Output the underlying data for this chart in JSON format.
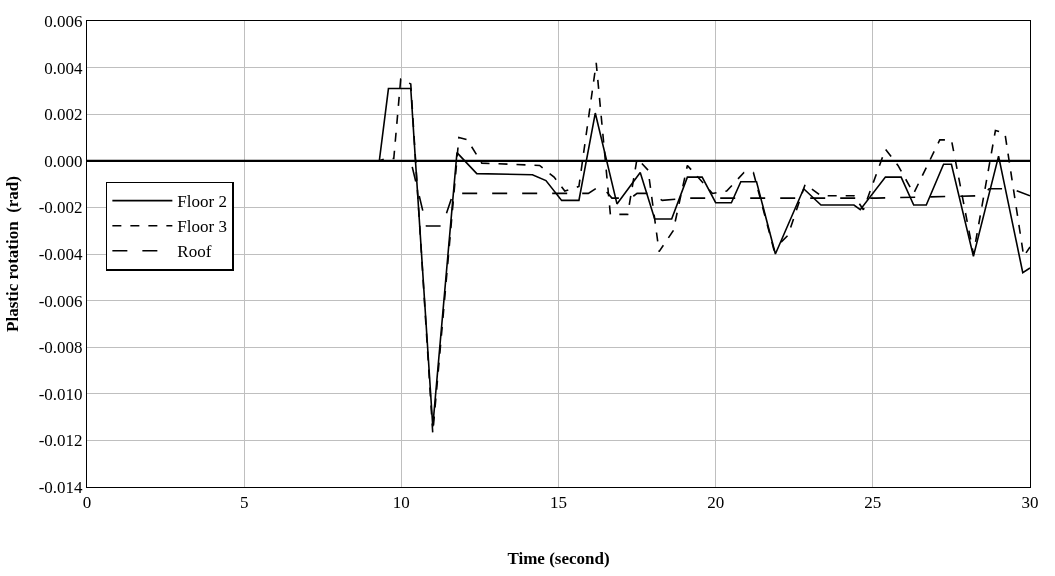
{
  "chart_data": {
    "type": "line",
    "xlabel": "Time (second)",
    "ylabel": "Plastic rotation  (rad)",
    "xlim": [
      0,
      30
    ],
    "xticks": [
      0,
      5,
      10,
      15,
      20,
      25,
      30
    ],
    "ylim": [
      -0.014,
      0.006
    ],
    "yticks": [
      {
        "value": -0.014,
        "label": "-0.014"
      },
      {
        "value": -0.012,
        "label": "-0.012"
      },
      {
        "value": -0.01,
        "label": "-0.010"
      },
      {
        "value": -0.008,
        "label": "-0.008"
      },
      {
        "value": -0.006,
        "label": "-0.006"
      },
      {
        "value": -0.004,
        "label": "-0.004"
      },
      {
        "value": -0.002,
        "label": "-0.002"
      },
      {
        "value": 0,
        "label": "0.000"
      },
      {
        "value": 0.002,
        "label": "0.002"
      },
      {
        "value": 0.004,
        "label": "0.004"
      },
      {
        "value": 0.006,
        "label": "0.006"
      }
    ],
    "grid": true,
    "legend": "left",
    "marker": "none",
    "ref_lines": [
      {
        "axis": "y",
        "value": 0,
        "color": "#000000"
      }
    ],
    "series": [
      {
        "name": "Floor 2",
        "color": "#000000",
        "line_style": "solid",
        "x": [
          0,
          9.3,
          9.59,
          10.3,
          11.0,
          11.77,
          12.4,
          14.17,
          14.6,
          15.1,
          15.65,
          16.17,
          16.86,
          17.6,
          18.06,
          18.6,
          19.1,
          19.57,
          20.0,
          20.5,
          20.8,
          21.3,
          21.9,
          22.8,
          23.35,
          24.4,
          24.6,
          25.4,
          25.9,
          26.3,
          26.7,
          27.25,
          27.5,
          28.2,
          29.0,
          29.77,
          30
        ],
        "values": [
          0,
          0,
          0.0031,
          0.0031,
          -0.0114,
          0.00035,
          -0.00055,
          -0.0006,
          -0.00085,
          -0.0017,
          -0.0017,
          0.00205,
          -0.00185,
          -0.0005,
          -0.0025,
          -0.0025,
          -0.0007,
          -0.0007,
          -0.0018,
          -0.0018,
          -0.0009,
          -0.0009,
          -0.004,
          -0.0012,
          -0.0019,
          -0.0019,
          -0.0021,
          -0.0007,
          -0.0007,
          -0.0019,
          -0.0019,
          -0.00015,
          -0.00015,
          -0.0041,
          0.0002,
          -0.0048,
          -0.0046
        ]
      },
      {
        "name": "Floor 3",
        "color": "#000000",
        "line_style": "dotted",
        "x": [
          0,
          9.3,
          9.5,
          9.76,
          9.98,
          10.3,
          11.0,
          11.83,
          12.1,
          12.56,
          14.4,
          14.86,
          15.2,
          15.65,
          16.2,
          16.65,
          17.2,
          17.5,
          17.85,
          18.2,
          18.65,
          19.1,
          19.9,
          20.35,
          20.9,
          21.2,
          21.85,
          22.3,
          22.85,
          23.35,
          24.4,
          24.7,
          25.4,
          25.8,
          26.3,
          27.13,
          27.5,
          28.2,
          28.9,
          29.2,
          29.8,
          30
        ],
        "values": [
          0,
          0,
          0.0001,
          0.0001,
          0.0035,
          0.0033,
          -0.0117,
          0.001,
          0.0009,
          -0.0001,
          -0.0002,
          -0.0007,
          -0.0013,
          -0.0011,
          0.0042,
          -0.0023,
          -0.0023,
          0.0001,
          -0.0004,
          -0.0039,
          -0.003,
          -0.0002,
          -0.0014,
          -0.0013,
          -0.0005,
          -0.0005,
          -0.0038,
          -0.0032,
          -0.001,
          -0.0015,
          -0.0015,
          -0.0021,
          0.0005,
          -0.0002,
          -0.0014,
          0.0009,
          0.0009,
          -0.004,
          0.0013,
          0.0012,
          -0.0041,
          -0.0037
        ]
      },
      {
        "name": "Roof",
        "color": "#000000",
        "line_style": "dashed",
        "x": [
          0,
          10.3,
          10.8,
          11.3,
          11.65,
          15.95,
          16.35,
          16.7,
          17.3,
          17.5,
          17.95,
          18.3,
          19.1,
          21.4,
          25.1,
          28.5,
          28.7,
          29.4,
          30
        ],
        "values": [
          0,
          0,
          -0.0028,
          -0.0028,
          -0.0014,
          -0.0014,
          -0.00105,
          -0.0016,
          -0.0016,
          -0.0014,
          -0.0014,
          -0.0017,
          -0.0016,
          -0.0016,
          -0.0016,
          -0.0015,
          -0.0012,
          -0.0012,
          -0.0015
        ]
      }
    ]
  }
}
